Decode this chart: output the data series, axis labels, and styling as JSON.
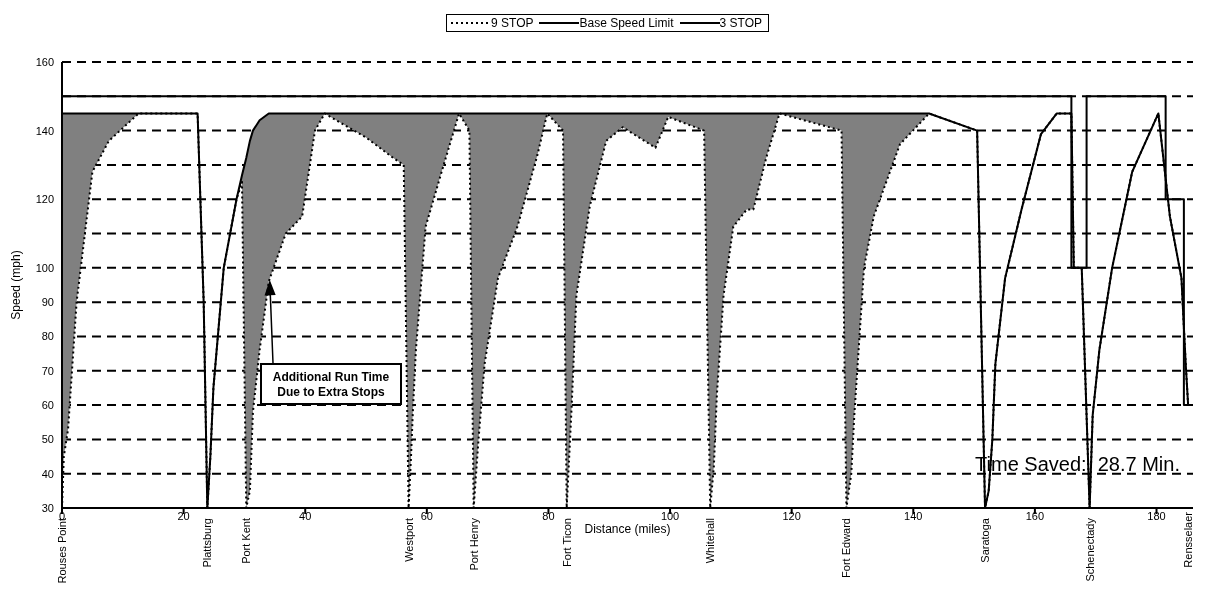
{
  "chart_data": {
    "type": "line",
    "xlabel": "Distance (miles)",
    "ylabel": "Speed (mph)",
    "xlim": [
      0,
      186
    ],
    "xticks": [
      0,
      20,
      40,
      60,
      80,
      100,
      120,
      140,
      160,
      180
    ],
    "ylim": [
      30,
      160
    ],
    "yticks": [
      30,
      40,
      50,
      60,
      70,
      80,
      90,
      100,
      {
        "value": 110,
        "label": null
      },
      120,
      {
        "value": 130,
        "label": null
      },
      140,
      {
        "value": 150,
        "label": null
      },
      160
    ],
    "grid": "y",
    "legend": "top",
    "x": [
      0,
      0.3,
      1,
      2.4,
      5,
      7.7,
      12.6,
      22.3,
      23.3,
      23.9,
      24.4,
      24.9,
      26.6,
      28.7,
      29.6,
      30.3,
      30.9,
      31.4,
      32.5,
      34,
      36.8,
      39.5,
      41.6,
      43.2,
      50,
      54.5,
      56.2,
      57,
      57.4,
      57.7,
      58.2,
      59.8,
      62.6,
      65.3,
      67,
      67.7,
      68.5,
      69.5,
      71.7,
      74.9,
      78.2,
      79.8,
      82.4,
      83,
      83.8,
      84.6,
      86.8,
      89.5,
      92.2,
      97.6,
      99.7,
      105.6,
      106.6,
      107.2,
      107.7,
      108.8,
      110.4,
      112.6,
      113.7,
      115.8,
      118,
      128.2,
      129,
      129.8,
      130.3,
      131.9,
      133.5,
      137.8,
      142.6,
      150.5,
      151.8,
      152.4,
      153,
      153.5,
      155.1,
      157.8,
      161,
      163.6,
      166,
      166.4,
      167.7,
      169,
      169.5,
      170.6,
      172.7,
      176,
      180.3,
      182.2,
      184.1,
      184.8,
      185.2
    ],
    "series": [
      {
        "name": "9 STOP",
        "color": "#000000",
        "line_style": "dotted",
        "values": [
          30,
          45,
          53,
          90,
          128,
          137,
          145,
          145,
          90,
          30,
          45,
          65,
          100,
          120,
          125,
          30,
          35,
          58,
          76,
          96,
          110,
          115,
          140,
          145,
          138,
          132,
          130,
          30,
          45,
          58,
          76,
          112,
          129,
          145,
          140,
          30,
          50,
          72,
          97,
          112,
          133,
          145,
          140,
          30,
          59,
          92,
          118,
          137,
          141,
          135,
          144,
          140,
          30,
          42,
          63,
          92,
          112,
          117,
          117,
          132,
          145,
          140,
          30,
          40,
          57,
          100,
          115,
          136,
          145,
          140,
          30,
          35,
          50,
          72,
          97,
          117,
          139,
          145,
          145,
          100,
          100,
          30,
          57,
          76,
          100,
          128,
          145,
          115,
          97,
          72,
          60
        ],
        "lower": [
          30,
          45,
          53,
          90,
          128,
          137,
          145,
          145,
          90,
          30,
          45,
          65,
          100,
          120,
          125,
          30,
          35,
          58,
          76,
          96,
          110,
          115,
          140,
          145,
          138,
          132,
          130,
          30,
          45,
          58,
          76,
          112,
          129,
          145,
          140,
          30,
          50,
          72,
          97,
          112,
          133,
          145,
          140,
          30,
          59,
          92,
          118,
          137,
          141,
          135,
          144,
          140,
          30,
          42,
          63,
          92,
          112,
          117,
          117,
          132,
          145,
          140,
          30,
          40,
          57,
          100,
          115,
          136,
          145,
          140,
          30,
          35,
          50,
          72,
          97,
          117,
          139,
          145,
          145,
          100,
          100,
          30,
          57,
          76,
          100,
          128,
          145,
          115,
          97,
          72,
          60
        ],
        "upper": [
          145,
          145,
          145,
          145,
          145,
          145,
          145,
          145,
          90,
          30,
          45,
          65,
          100,
          120,
          127,
          132,
          137,
          140,
          143,
          145,
          145,
          145,
          145,
          145,
          145,
          145,
          145,
          145,
          145,
          145,
          145,
          145,
          145,
          145,
          145,
          145,
          145,
          145,
          145,
          145,
          145,
          145,
          145,
          145,
          145,
          145,
          145,
          145,
          145,
          145,
          145,
          145,
          145,
          145,
          145,
          145,
          145,
          145,
          145,
          145,
          145,
          145,
          145,
          145,
          145,
          145,
          145,
          145,
          145,
          140,
          30,
          35,
          50,
          72,
          97,
          117,
          139,
          145,
          145,
          100,
          100,
          30,
          57,
          76,
          100,
          128,
          145,
          115,
          97,
          72,
          60
        ]
      },
      {
        "name": "Base Speed Limit",
        "color": "#000000",
        "line_style": "solid",
        "x": [
          0,
          166,
          166,
          168.5,
          168.5,
          181.5,
          181.5,
          184.5,
          184.5,
          185.2
        ],
        "values": [
          150,
          150,
          100,
          100,
          150,
          150,
          120,
          120,
          60,
          60
        ]
      },
      {
        "name": "3 STOP",
        "color": "#000000",
        "line_style": "solid",
        "values": [
          145,
          145,
          145,
          145,
          145,
          145,
          145,
          145,
          90,
          30,
          45,
          65,
          100,
          120,
          127,
          132,
          137,
          140,
          143,
          145,
          145,
          145,
          145,
          145,
          145,
          145,
          145,
          145,
          145,
          145,
          145,
          145,
          145,
          145,
          145,
          145,
          145,
          145,
          145,
          145,
          145,
          145,
          145,
          145,
          145,
          145,
          145,
          145,
          145,
          145,
          145,
          145,
          145,
          145,
          145,
          145,
          145,
          145,
          145,
          145,
          145,
          145,
          145,
          145,
          145,
          145,
          145,
          145,
          145,
          140,
          30,
          35,
          50,
          72,
          97,
          117,
          139,
          145,
          145,
          100,
          100,
          30,
          57,
          76,
          100,
          128,
          145,
          115,
          97,
          72,
          60
        ]
      }
    ],
    "annotations": [
      "Additional Run Time\nDue to Extra Stops",
      "Time Saved:  28.7 Min.",
      {
        "text": "Rouses Point",
        "x": 0,
        "y": 30
      },
      {
        "text": "Plattsburg",
        "x": 23.9,
        "y": 30
      },
      {
        "text": "Port Kent",
        "x": 30.3,
        "y": 30
      },
      {
        "text": "Westport",
        "x": 57,
        "y": 30
      },
      {
        "text": "Port Henry",
        "x": 67.7,
        "y": 30
      },
      {
        "text": "Fort Ticon",
        "x": 83,
        "y": 30
      },
      {
        "text": "Whitehall",
        "x": 106.6,
        "y": 30
      },
      {
        "text": "Fort Edward",
        "x": 129,
        "y": 30
      },
      {
        "text": "Saratoga",
        "x": 151.8,
        "y": 30
      },
      {
        "text": "Schenectady",
        "x": 169,
        "y": 30
      },
      "Rensselaer"
    ]
  }
}
